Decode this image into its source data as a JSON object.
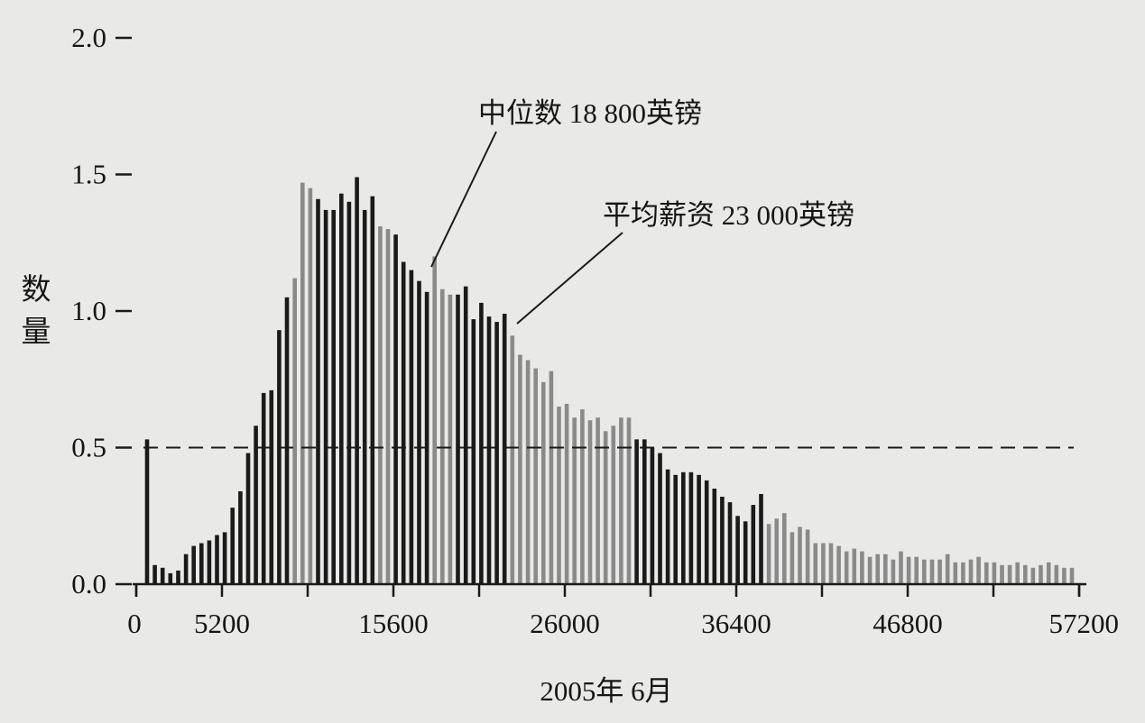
{
  "chart_data": {
    "type": "bar",
    "title": "",
    "xlabel": "2005年 6月",
    "ylabel_chars": [
      "数",
      "量"
    ],
    "x_range": [
      0,
      57200
    ],
    "bin_width": 1040,
    "ylim": [
      0,
      2.0
    ],
    "grid": false,
    "legend": "none",
    "yticks": [
      "0.0",
      "0.5",
      "1.0",
      "1.5",
      "2.0"
    ],
    "yticks_values": [
      0,
      0.5,
      1.0,
      1.5,
      2.0
    ],
    "xticks": [
      "0",
      "5200",
      "15600",
      "26000",
      "36400",
      "46800",
      "57200"
    ],
    "xticks_values": [
      0,
      5200,
      15600,
      26000,
      36400,
      46800,
      57200
    ],
    "minor_xticks": [
      0,
      10400,
      20800,
      31200,
      41600,
      52000,
      57200
    ],
    "reference_line": {
      "y": 0.5,
      "style": "dashed"
    },
    "annotations": [
      {
        "text": "中位数 18 800英镑",
        "x": 18800,
        "y": 1.16,
        "value": 18800
      },
      {
        "text": "平均薪资 23 000英镑",
        "x": 23000,
        "y": 0.96,
        "value": 23000
      }
    ],
    "values": [
      0.53,
      0.07,
      0.06,
      0.04,
      0.05,
      0.11,
      0.14,
      0.15,
      0.16,
      0.18,
      0.19,
      0.28,
      0.34,
      0.48,
      0.58,
      0.7,
      0.71,
      0.93,
      1.05,
      1.12,
      1.47,
      1.45,
      1.41,
      1.37,
      1.37,
      1.43,
      1.4,
      1.49,
      1.37,
      1.42,
      1.31,
      1.3,
      1.28,
      1.18,
      1.15,
      1.11,
      1.07,
      1.2,
      1.08,
      1.06,
      1.06,
      1.09,
      0.97,
      1.03,
      0.98,
      0.96,
      0.99,
      0.91,
      0.84,
      0.82,
      0.79,
      0.74,
      0.78,
      0.65,
      0.66,
      0.61,
      0.64,
      0.6,
      0.61,
      0.56,
      0.58,
      0.61,
      0.61,
      0.53,
      0.53,
      0.5,
      0.48,
      0.42,
      0.4,
      0.41,
      0.41,
      0.4,
      0.38,
      0.35,
      0.32,
      0.3,
      0.25,
      0.23,
      0.29,
      0.33,
      0.22,
      0.24,
      0.26,
      0.19,
      0.21,
      0.2,
      0.15,
      0.15,
      0.15,
      0.14,
      0.12,
      0.13,
      0.12,
      0.1,
      0.11,
      0.11,
      0.09,
      0.12,
      0.1,
      0.1,
      0.09,
      0.09,
      0.09,
      0.11,
      0.08,
      0.08,
      0.09,
      0.1,
      0.08,
      0.08,
      0.07,
      0.07,
      0.08,
      0.07,
      0.06,
      0.07,
      0.08,
      0.07,
      0.06,
      0.06
    ],
    "bar_colors": [
      "#1a1a1a",
      "#8a8a8a"
    ]
  }
}
